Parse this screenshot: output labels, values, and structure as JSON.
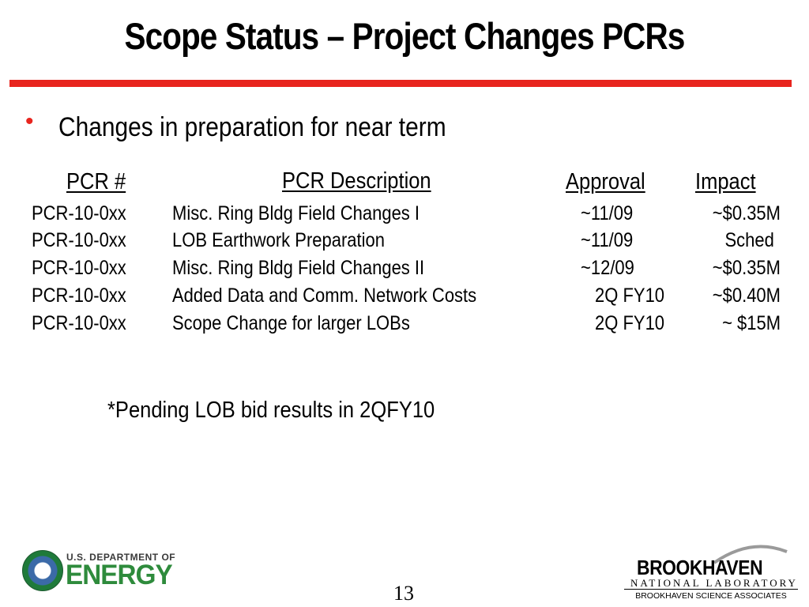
{
  "slide": {
    "title": "Scope Status – Project Changes PCRs",
    "bullet": "Changes in preparation for near term",
    "footnote": "*Pending LOB bid  results in 2QFY10",
    "page_number": "13"
  },
  "table": {
    "headers": {
      "number": "PCR #",
      "description": "PCR Description",
      "approval": "Approval",
      "impact": "Impact"
    },
    "rows": [
      {
        "number": "PCR-10-0xx",
        "description": "Misc. Ring Bldg Field Changes I",
        "approval": "~11/09",
        "impact": "~$0.35M"
      },
      {
        "number": "PCR-10-0xx",
        "description": "LOB Earthwork Preparation",
        "approval": "~11/09",
        "impact": "Sched"
      },
      {
        "number": "PCR-10-0xx",
        "description": "Misc. Ring Bldg Field Changes II",
        "approval": "~12/09",
        "impact": "~$0.35M"
      },
      {
        "number": "PCR-10-0xx",
        "description": "Added Data and Comm. Network Costs",
        "approval": "2Q FY10",
        "impact": "~$0.40M"
      },
      {
        "number": "PCR-10-0xx",
        "description": "Scope Change for larger LOBs",
        "approval": "2Q FY10",
        "impact": "~ $15M"
      }
    ]
  },
  "logos": {
    "doe_top": "U.S. DEPARTMENT OF",
    "doe_main": "ENERGY",
    "bnl_name": "BROOKHAVEN",
    "bnl_sub": "NATIONAL LABORATORY",
    "bnl_assoc": "BROOKHAVEN SCIENCE ASSOCIATES"
  },
  "colors": {
    "accent_red": "#e8251e",
    "doe_green": "#2e8b3c"
  }
}
